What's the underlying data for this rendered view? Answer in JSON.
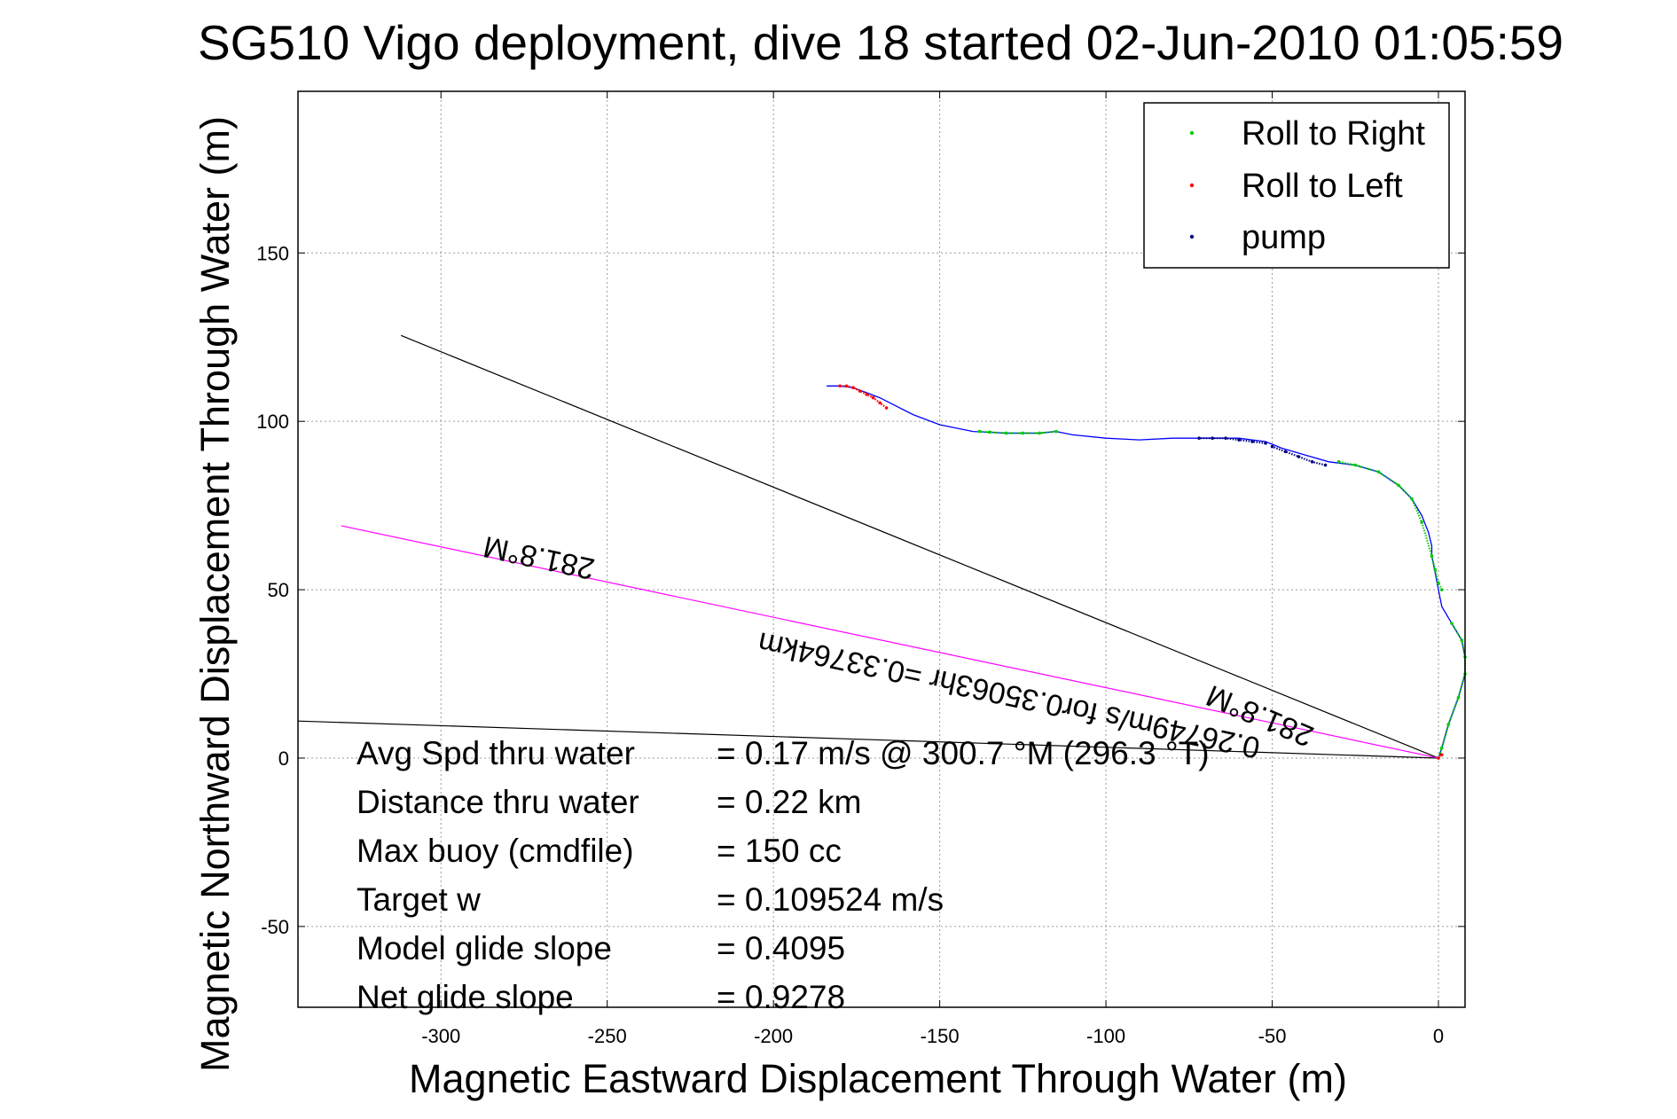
{
  "chart_data": {
    "type": "line",
    "title": "SG510 Vigo deployment, dive 18 started 02-Jun-2010 01:05:59",
    "xlabel": "Magnetic Eastward Displacement Through Water (m)",
    "ylabel": "Magnetic Northward Displacement Through Water (m)",
    "xlim": [
      -343,
      8
    ],
    "ylim": [
      -74,
      198
    ],
    "xticks": [
      -300,
      -250,
      -200,
      -150,
      -100,
      -50,
      0
    ],
    "yticks": [
      -50,
      0,
      50,
      100,
      150
    ],
    "grid": true,
    "legend_position": "top-right",
    "legend": [
      {
        "label": "Roll to Right",
        "color": "#00cc00"
      },
      {
        "label": "Roll to Left",
        "color": "#ff0000"
      },
      {
        "label": "pump",
        "color": "#000080"
      }
    ],
    "series": [
      {
        "name": "track",
        "color": "#0000ff",
        "x": [
          0,
          1,
          3,
          6,
          8,
          8,
          7,
          4,
          1,
          0,
          -1,
          -2,
          -2,
          -3,
          -5,
          -8,
          -12,
          -18,
          -25,
          -33,
          -40,
          -47,
          -52,
          -56,
          -60,
          -66,
          -72,
          -80,
          -90,
          -100,
          -110,
          -115,
          -120,
          -130,
          -140,
          -150,
          -158,
          -164,
          -168,
          -172,
          -176,
          -180,
          -184
        ],
        "y": [
          0,
          3,
          10,
          18,
          25,
          30,
          35,
          40,
          45,
          50,
          55,
          60,
          63,
          67,
          72,
          77,
          81,
          85,
          87,
          88,
          90,
          92,
          94,
          94.5,
          95,
          95,
          95,
          95,
          94.5,
          95,
          96,
          97,
          96.5,
          96.5,
          97,
          99,
          102,
          105,
          107,
          108.5,
          110,
          110.5,
          110.5
        ]
      },
      {
        "name": "Roll to Right",
        "color": "#00cc00",
        "segments": [
          {
            "x": [
              0,
              1,
              3,
              6,
              8,
              8,
              7,
              4
            ],
            "y": [
              0,
              3,
              10,
              18,
              25,
              30,
              35,
              40
            ]
          },
          {
            "x": [
              1,
              0,
              -1,
              -2,
              -5,
              -8,
              -12,
              -18,
              -25,
              -30
            ],
            "y": [
              50,
              52,
              56,
              60,
              70,
              77,
              81,
              85,
              87,
              88
            ]
          },
          {
            "x": [
              -115,
              -120,
              -125,
              -130,
              -135,
              -138
            ],
            "y": [
              97,
              96.5,
              96.5,
              96.5,
              96.8,
              97
            ]
          }
        ]
      },
      {
        "name": "Roll to Left",
        "color": "#ff0000",
        "segments": [
          {
            "x": [
              -166,
              -168,
              -170,
              -172,
              -174,
              -176,
              -178,
              -180
            ],
            "y": [
              104,
              105.5,
              107,
              108,
              109,
              110,
              110.5,
              110.5
            ]
          },
          {
            "x": [
              0,
              1
            ],
            "y": [
              0,
              1
            ]
          }
        ]
      },
      {
        "name": "pump",
        "color": "#000080",
        "segments": [
          {
            "x": [
              -34,
              -38,
              -42,
              -46,
              -50
            ],
            "y": [
              87,
              88,
              89.5,
              91,
              92.5
            ]
          },
          {
            "x": [
              -52,
              -56,
              -60,
              -64,
              -68,
              -72
            ],
            "y": [
              93.5,
              94,
              94.5,
              95,
              95,
              95
            ]
          }
        ]
      }
    ],
    "lines": [
      {
        "name": "black-line-1",
        "color": "#000000",
        "x": [
          0,
          -312
        ],
        "y": [
          0,
          125.5
        ]
      },
      {
        "name": "black-line-2",
        "color": "#000000",
        "x": [
          0,
          -343
        ],
        "y": [
          0,
          11
        ]
      },
      {
        "name": "magenta-line",
        "color": "#ff00ff",
        "x": [
          0,
          -330
        ],
        "y": [
          0,
          69
        ]
      }
    ]
  },
  "stats": [
    {
      "label": "Avg Spd thru water",
      "value": "=  0.17 m/s @ 300.7 °M (296.3 °T)"
    },
    {
      "label": "Distance thru water",
      "value": "=  0.22 km"
    },
    {
      "label": "Max buoy (cmdfile)",
      "value": "= 150 cc"
    },
    {
      "label": "Target w",
      "value": "= 0.109524 m/s"
    },
    {
      "label": "Model glide slope",
      "value": "= 0.4095"
    },
    {
      "label": "Net glide slope",
      "value": "= 0.9278"
    }
  ],
  "annotations": [
    {
      "text": "281.8°M"
    },
    {
      "text": "0.26749m/s for0.35063hr =0.33764km"
    },
    {
      "text": "281.8°M"
    }
  ]
}
